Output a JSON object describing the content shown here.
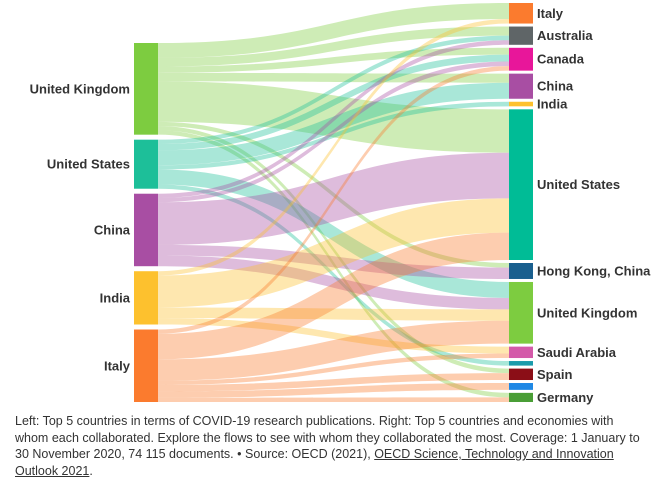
{
  "chart_data": {
    "type": "sankey",
    "left_nodes": [
      {
        "id": "L-UK",
        "label": "United Kingdom",
        "color": "#7dcc40"
      },
      {
        "id": "L-US",
        "label": "United States",
        "color": "#1dbf99"
      },
      {
        "id": "L-CN",
        "label": "China",
        "color": "#a84ea3"
      },
      {
        "id": "L-IN",
        "label": "India",
        "color": "#fdc12e"
      },
      {
        "id": "L-IT",
        "label": "Italy",
        "color": "#fb7b2e"
      }
    ],
    "right_nodes": [
      {
        "id": "R-IT",
        "label": "Italy",
        "color": "#fb7b2e"
      },
      {
        "id": "R-AU",
        "label": "Australia",
        "color": "#5f6567"
      },
      {
        "id": "R-CA",
        "label": "Canada",
        "color": "#e8169a"
      },
      {
        "id": "R-CN",
        "label": "China",
        "color": "#a84ea3"
      },
      {
        "id": "R-IN",
        "label": "India",
        "color": "#fdc12e"
      },
      {
        "id": "R-US",
        "label": "United States",
        "color": "#00bc96"
      },
      {
        "id": "R-HK",
        "label": "Hong Kong, China",
        "color": "#1a5f8e"
      },
      {
        "id": "R-UK",
        "label": "United Kingdom",
        "color": "#7dcc40"
      },
      {
        "id": "R-SA",
        "label": "Saudi Arabia",
        "color": "#d45aa9"
      },
      {
        "id": "R-X1",
        "label": "",
        "color": "#1a9bab"
      },
      {
        "id": "R-ES",
        "label": "Spain",
        "color": "#8b0e17"
      },
      {
        "id": "R-X2",
        "label": "",
        "color": "#1f88e5"
      },
      {
        "id": "R-DE",
        "label": "Germany",
        "color": "#4a9e36"
      }
    ],
    "flows": [
      {
        "source": "L-UK",
        "target": "R-IT",
        "value": 14
      },
      {
        "source": "L-UK",
        "target": "R-AU",
        "value": 8
      },
      {
        "source": "L-UK",
        "target": "R-CA",
        "value": 6
      },
      {
        "source": "L-UK",
        "target": "R-CN",
        "value": 8
      },
      {
        "source": "L-UK",
        "target": "R-US",
        "value": 38
      },
      {
        "source": "L-UK",
        "target": "R-HK",
        "value": 4
      },
      {
        "source": "L-UK",
        "target": "R-ES",
        "value": 4
      },
      {
        "source": "L-UK",
        "target": "R-DE",
        "value": 4
      },
      {
        "source": "L-US",
        "target": "R-AU",
        "value": 4
      },
      {
        "source": "L-US",
        "target": "R-CA",
        "value": 6
      },
      {
        "source": "L-US",
        "target": "R-CN",
        "value": 14
      },
      {
        "source": "L-US",
        "target": "R-IN",
        "value": 4
      },
      {
        "source": "L-US",
        "target": "R-UK",
        "value": 14
      },
      {
        "source": "L-US",
        "target": "R-X1",
        "value": 4
      },
      {
        "source": "L-CN",
        "target": "R-AU",
        "value": 4
      },
      {
        "source": "L-CN",
        "target": "R-CA",
        "value": 4
      },
      {
        "source": "L-CN",
        "target": "R-US",
        "value": 40
      },
      {
        "source": "L-CN",
        "target": "R-HK",
        "value": 10
      },
      {
        "source": "L-CN",
        "target": "R-UK",
        "value": 10
      },
      {
        "source": "L-IN",
        "target": "R-IT",
        "value": 4
      },
      {
        "source": "L-IN",
        "target": "R-US",
        "value": 30
      },
      {
        "source": "L-IN",
        "target": "R-UK",
        "value": 10
      },
      {
        "source": "L-IN",
        "target": "R-SA",
        "value": 6
      },
      {
        "source": "L-IT",
        "target": "R-CA",
        "value": 4
      },
      {
        "source": "L-IT",
        "target": "R-US",
        "value": 24
      },
      {
        "source": "L-IT",
        "target": "R-UK",
        "value": 20
      },
      {
        "source": "L-IT",
        "target": "R-SA",
        "value": 4
      },
      {
        "source": "L-IT",
        "target": "R-ES",
        "value": 6
      },
      {
        "source": "L-IT",
        "target": "R-X2",
        "value": 6
      },
      {
        "source": "L-IT",
        "target": "R-DE",
        "value": 4
      }
    ]
  },
  "caption": {
    "text": "Left: Top 5 countries in terms of COVID-19 research publications. Right: Top 5 countries and economies with whom each collaborated. Explore the flows to see with whom they collaborated the most. Coverage: 1 January to 30 November 2020, 74 115 documents. • Source: OECD (2021), ",
    "link_text": "OECD Science, Technology and Innovation Outlook 2021",
    "suffix": "."
  }
}
